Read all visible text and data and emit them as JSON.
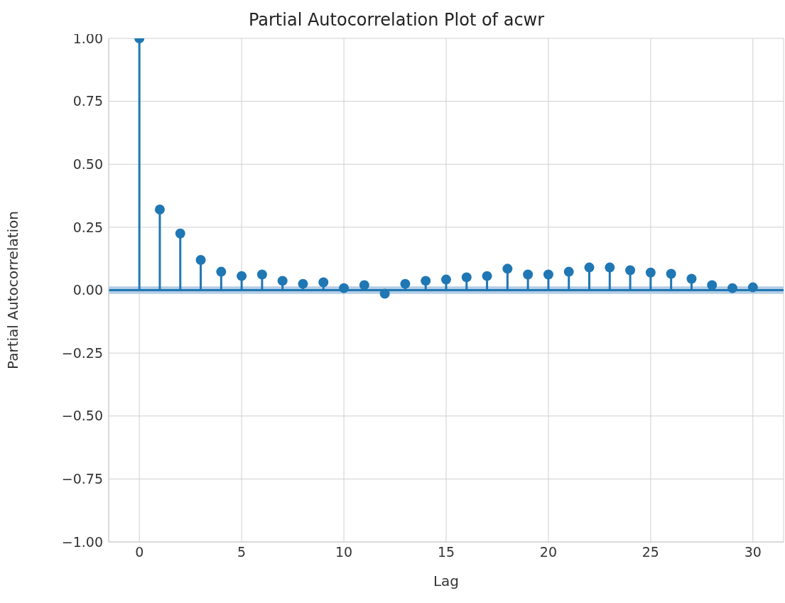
{
  "chart_data": {
    "type": "lollipop",
    "title": "Partial Autocorrelation Plot of acwr",
    "xlabel": "Lag",
    "ylabel": "Partial Autocorrelation",
    "x": [
      0,
      1,
      2,
      3,
      4,
      5,
      6,
      7,
      8,
      9,
      10,
      11,
      12,
      13,
      14,
      15,
      16,
      17,
      18,
      19,
      20,
      21,
      22,
      23,
      24,
      25,
      26,
      27,
      28,
      29,
      30
    ],
    "values": [
      1.0,
      0.32,
      0.225,
      0.12,
      0.073,
      0.056,
      0.062,
      0.037,
      0.025,
      0.031,
      0.008,
      0.02,
      -0.014,
      0.025,
      0.037,
      0.042,
      0.051,
      0.056,
      0.085,
      0.062,
      0.062,
      0.073,
      0.09,
      0.09,
      0.079,
      0.07,
      0.065,
      0.045,
      0.02,
      0.008,
      0.011
    ],
    "color": "#1f77b4",
    "marker": "circle",
    "xlim": [
      -1.5,
      31.5
    ],
    "xticks": [
      0,
      5,
      10,
      15,
      20,
      25,
      30
    ],
    "ylim": [
      -1,
      1
    ],
    "yticks": [
      {
        "value": -1,
        "label": "−1.00"
      },
      {
        "value": -0.75,
        "label": "−0.75"
      },
      {
        "value": -0.5,
        "label": "−0.50"
      },
      {
        "value": -0.25,
        "label": "−0.25"
      },
      {
        "value": 0,
        "label": "0.00"
      },
      {
        "value": 0.25,
        "label": "0.25"
      },
      {
        "value": 0.5,
        "label": "0.50"
      },
      {
        "value": 0.75,
        "label": "0.75"
      },
      {
        "value": 1,
        "label": "1.00"
      }
    ],
    "grid": true,
    "ref_lines": [
      {
        "axis": "y",
        "value": 0,
        "color": "#1f77b4"
      }
    ],
    "bands": [
      {
        "axis": "y",
        "from": -0.015,
        "to": 0.015,
        "color": "#b4cde4"
      }
    ]
  }
}
